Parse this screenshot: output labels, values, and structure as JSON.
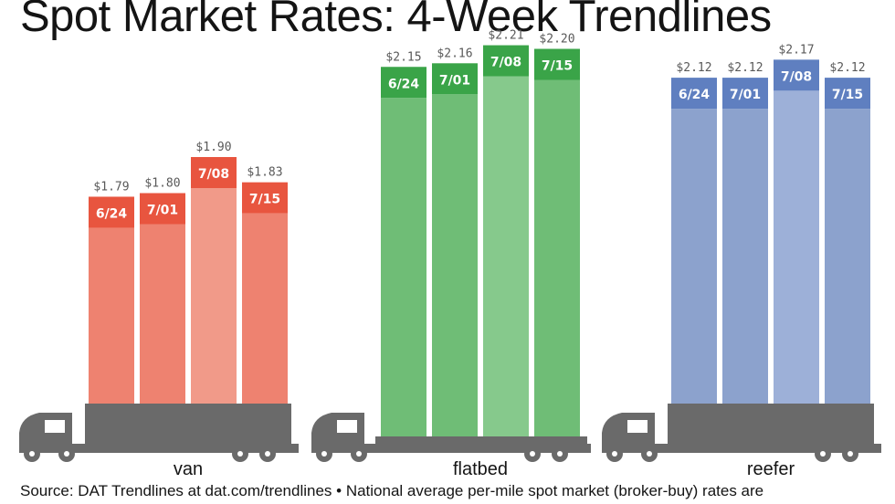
{
  "chart_data": {
    "type": "bar",
    "title": "Spot Market Rates: 4-Week Trendlines",
    "note": "Source: DAT Trendlines at dat.com/trendlines • National average per-mile spot market (broker-buy) rates are",
    "categories": [
      "6/24",
      "7/01",
      "7/08",
      "7/15"
    ],
    "value_labels": {
      "van": [
        "$1.79",
        "$1.80",
        "$1.90",
        "$1.83"
      ],
      "flatbed": [
        "$2.15",
        "$2.16",
        "$2.21",
        "$2.20"
      ],
      "reefer": [
        "$2.12",
        "$2.12",
        "$2.17",
        "$2.12"
      ]
    },
    "series": [
      {
        "name": "van",
        "values": [
          1.79,
          1.8,
          1.9,
          1.83
        ],
        "color": "#ee8270",
        "header_color": "#e8553f",
        "highlight_color": "#f19a89",
        "highlight_header_color": "#e8553f"
      },
      {
        "name": "flatbed",
        "values": [
          2.15,
          2.16,
          2.21,
          2.2
        ],
        "color": "#6fbd76",
        "header_color": "#3aa448",
        "highlight_color": "#86c98c",
        "highlight_header_color": "#3aa448"
      },
      {
        "name": "reefer",
        "values": [
          2.12,
          2.12,
          2.17,
          2.12
        ],
        "color": "#8ca2cd",
        "header_color": "#5f7fc0",
        "highlight_color": "#9db0d8",
        "highlight_header_color": "#5f7fc0"
      }
    ],
    "truck_color": "#6a6a6a",
    "grid": false,
    "legend": "none"
  }
}
